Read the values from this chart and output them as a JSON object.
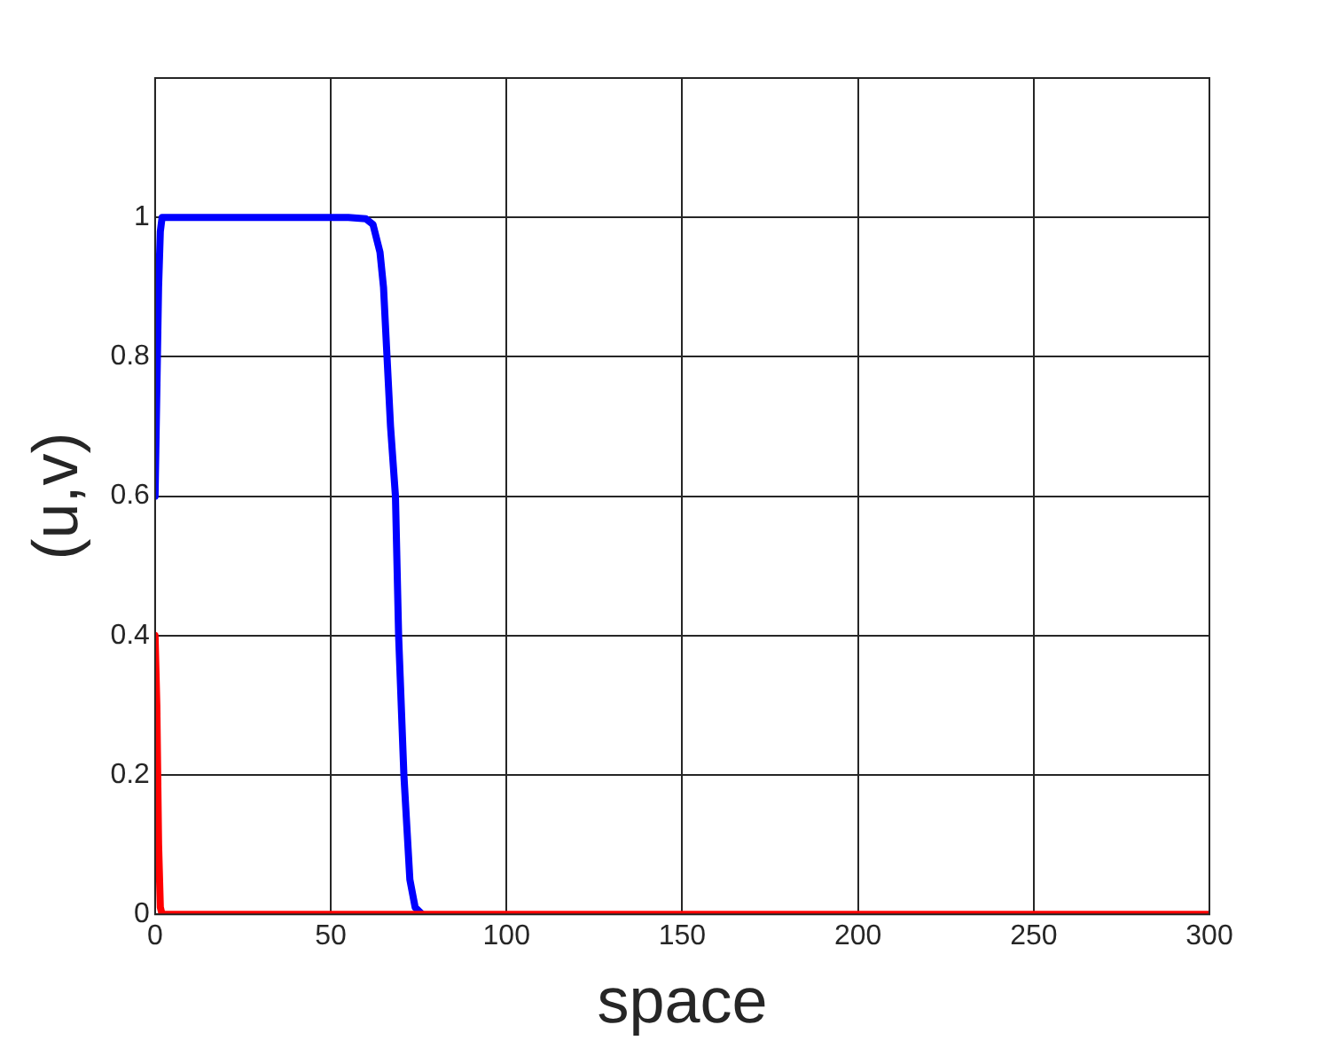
{
  "chart_data": {
    "type": "line",
    "xlabel": "space",
    "ylabel": "(u,v)",
    "xlim": [
      0,
      300
    ],
    "ylim": [
      0,
      1.2
    ],
    "xticks": [
      0,
      50,
      100,
      150,
      200,
      250,
      300
    ],
    "yticks": [
      0,
      0.2,
      0.4,
      0.6,
      0.8,
      1
    ],
    "grid": true,
    "legend": false,
    "marker": "none",
    "line_style": "solid",
    "series": [
      {
        "color": "#0000ff",
        "x": [
          0,
          0.5,
          1,
          1.5,
          2,
          10,
          30,
          55,
          60,
          62,
          64,
          65,
          66,
          67,
          68.4,
          69.3,
          70.8,
          72.5,
          74,
          76
        ],
        "values": [
          0.6,
          0.75,
          0.9,
          0.98,
          1,
          1,
          1,
          1,
          0.998,
          0.99,
          0.95,
          0.9,
          0.8,
          0.7,
          0.6,
          0.4,
          0.2,
          0.05,
          0.01,
          0
        ]
      },
      {
        "color": "#ff0000",
        "x": [
          0,
          0.5,
          1,
          1.5,
          2,
          50,
          100,
          150,
          200,
          250,
          300
        ],
        "values": [
          0.4,
          0.3,
          0.1,
          0.01,
          0,
          0,
          0,
          0,
          0,
          0,
          0
        ]
      }
    ]
  }
}
